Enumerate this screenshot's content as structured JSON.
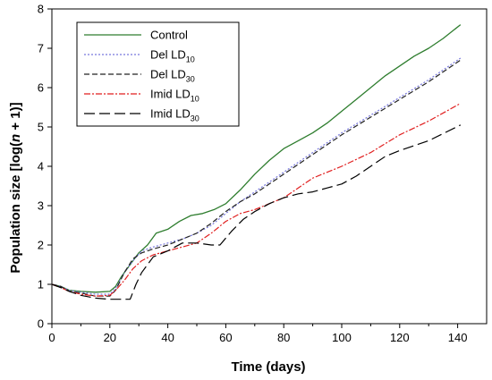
{
  "chart_data": {
    "type": "line",
    "xlabel": "Time (days)",
    "ylabel_parts": [
      "Population size [log(",
      "n",
      " + 1)]"
    ],
    "xlim": [
      0,
      150
    ],
    "ylim": [
      0,
      8
    ],
    "xticks": [
      0,
      20,
      40,
      60,
      80,
      100,
      120,
      140
    ],
    "yticks": [
      0,
      1,
      2,
      3,
      4,
      5,
      6,
      7,
      8
    ],
    "grid": false,
    "legend_placement": "top-left",
    "series": [
      {
        "name": "Control",
        "legend_main": "Control",
        "legend_sub": "",
        "color": "#2e7d2e",
        "dash": "",
        "x": [
          0,
          3,
          6,
          10,
          15,
          20,
          22,
          24,
          27,
          30,
          33,
          36,
          40,
          44,
          48,
          52,
          56,
          60,
          65,
          70,
          75,
          80,
          85,
          90,
          95,
          100,
          105,
          110,
          115,
          120,
          125,
          130,
          135,
          141
        ],
        "y": [
          1.0,
          0.95,
          0.85,
          0.82,
          0.8,
          0.82,
          0.95,
          1.2,
          1.5,
          1.8,
          2.0,
          2.3,
          2.4,
          2.6,
          2.75,
          2.8,
          2.9,
          3.05,
          3.4,
          3.8,
          4.15,
          4.45,
          4.65,
          4.85,
          5.1,
          5.4,
          5.7,
          6.0,
          6.3,
          6.55,
          6.8,
          7.0,
          7.25,
          7.6
        ]
      },
      {
        "name": "Del LD10",
        "legend_main": "Del LD",
        "legend_sub": "10",
        "color": "#7777dd",
        "dash": "2,2",
        "x": [
          0,
          3,
          6,
          10,
          15,
          20,
          22,
          25,
          28,
          31,
          35,
          40,
          45,
          50,
          55,
          60,
          65,
          70,
          75,
          80,
          90,
          100,
          110,
          120,
          130,
          141
        ],
        "y": [
          1.0,
          0.95,
          0.85,
          0.8,
          0.75,
          0.75,
          0.9,
          1.3,
          1.6,
          1.85,
          1.95,
          2.05,
          2.15,
          2.3,
          2.5,
          2.8,
          3.1,
          3.35,
          3.6,
          3.85,
          4.35,
          4.85,
          5.3,
          5.75,
          6.2,
          6.75
        ]
      },
      {
        "name": "Del LD30",
        "legend_main": "Del LD",
        "legend_sub": "30",
        "color": "#222222",
        "dash": "6,3",
        "x": [
          0,
          3,
          6,
          10,
          15,
          20,
          22,
          25,
          28,
          31,
          35,
          40,
          45,
          50,
          55,
          60,
          65,
          70,
          75,
          80,
          90,
          100,
          110,
          120,
          130,
          141
        ],
        "y": [
          1.0,
          0.95,
          0.82,
          0.78,
          0.7,
          0.7,
          0.85,
          1.3,
          1.65,
          1.8,
          1.9,
          2.0,
          2.15,
          2.3,
          2.55,
          2.85,
          3.1,
          3.3,
          3.55,
          3.8,
          4.3,
          4.8,
          5.25,
          5.7,
          6.15,
          6.7
        ]
      },
      {
        "name": "Imid LD10",
        "legend_main": "Imid LD",
        "legend_sub": "10",
        "color": "#e01f1f",
        "dash": "7,2,2,2",
        "x": [
          0,
          3,
          6,
          10,
          15,
          20,
          22,
          25,
          28,
          31,
          35,
          40,
          45,
          50,
          55,
          60,
          65,
          70,
          75,
          80,
          85,
          90,
          100,
          110,
          120,
          130,
          141
        ],
        "y": [
          1.0,
          0.92,
          0.82,
          0.75,
          0.7,
          0.72,
          0.85,
          1.1,
          1.4,
          1.6,
          1.75,
          1.85,
          1.95,
          2.05,
          2.3,
          2.6,
          2.8,
          2.9,
          3.05,
          3.2,
          3.45,
          3.7,
          4.0,
          4.35,
          4.8,
          5.15,
          5.6
        ]
      },
      {
        "name": "Imid LD30",
        "legend_main": "Imid LD",
        "legend_sub": "30",
        "color": "#000000",
        "dash": "12,5",
        "x": [
          0,
          3,
          6,
          10,
          15,
          20,
          25,
          27,
          29,
          31,
          35,
          40,
          45,
          50,
          55,
          58,
          62,
          66,
          70,
          75,
          80,
          85,
          90,
          95,
          100,
          105,
          110,
          115,
          120,
          130,
          141
        ],
        "y": [
          1.0,
          0.92,
          0.82,
          0.72,
          0.65,
          0.62,
          0.62,
          0.62,
          1.0,
          1.3,
          1.7,
          1.85,
          2.05,
          2.05,
          2.0,
          2.0,
          2.35,
          2.65,
          2.85,
          3.05,
          3.2,
          3.3,
          3.35,
          3.45,
          3.55,
          3.75,
          4.0,
          4.25,
          4.4,
          4.65,
          5.05
        ]
      }
    ]
  }
}
